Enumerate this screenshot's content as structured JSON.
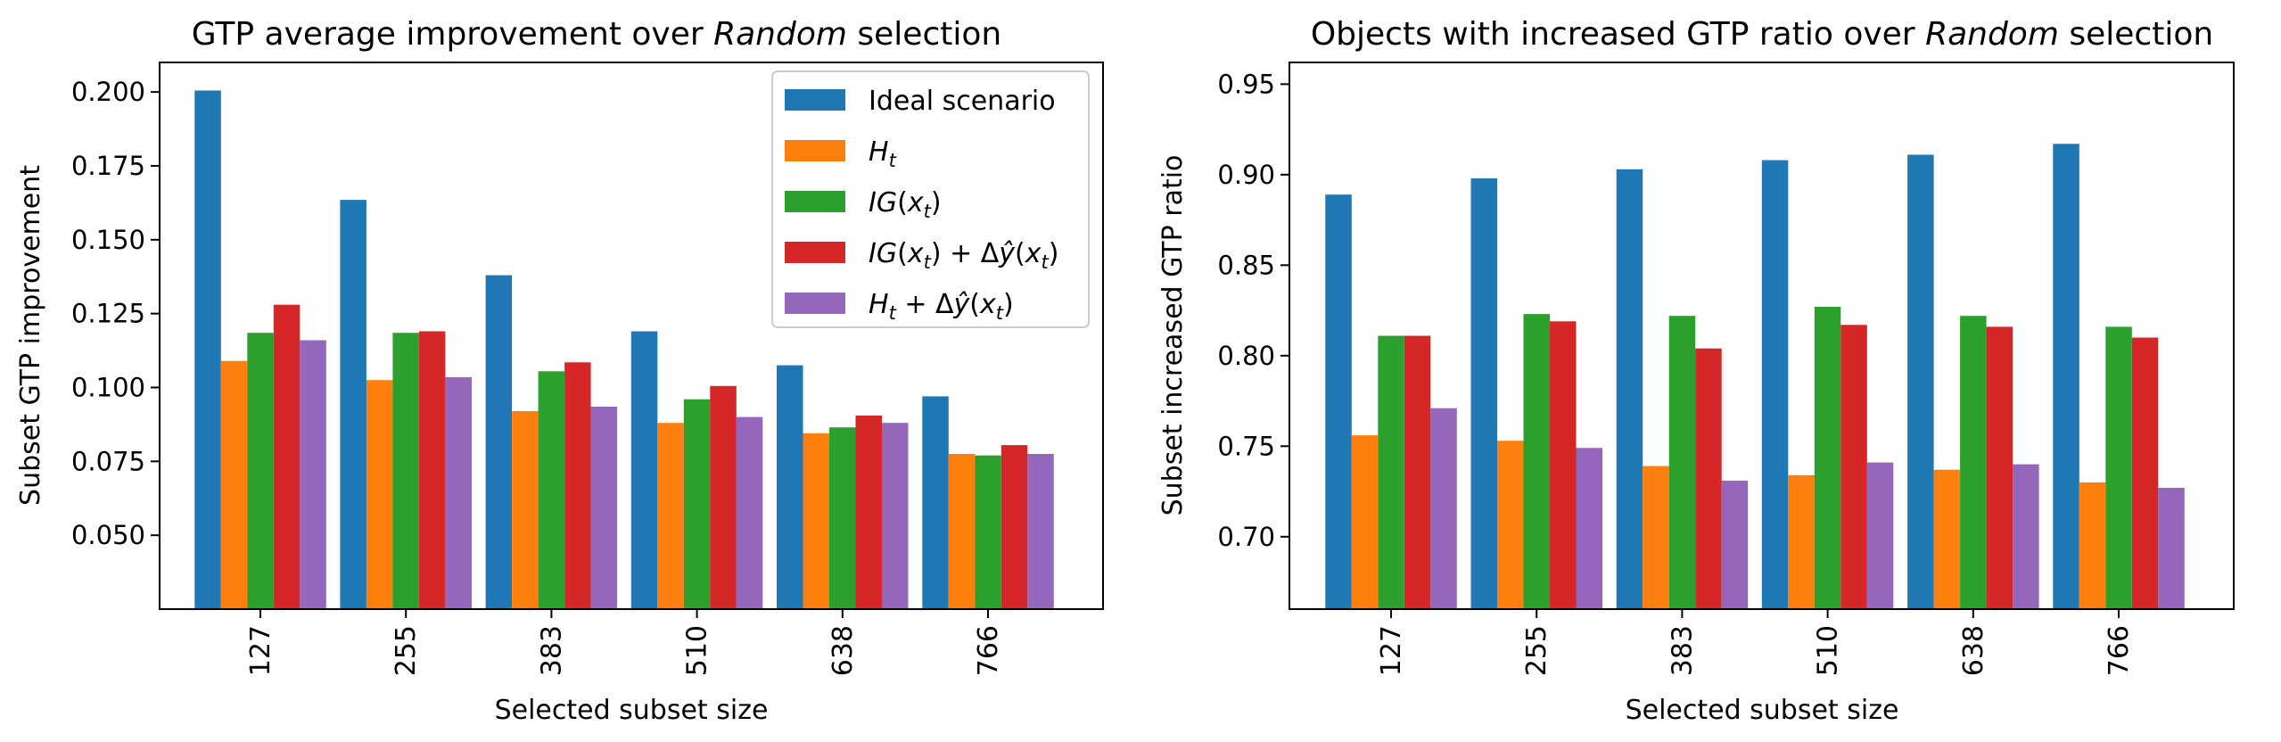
{
  "colors": {
    "ideal": "#1f77b4",
    "ht": "#ff7f0e",
    "ig": "#2ca02c",
    "ig_dy": "#d62728",
    "ht_dy": "#9467bd"
  },
  "chart_data": [
    {
      "type": "bar",
      "title": {
        "before": "GTP average improvement over ",
        "italic": "Random",
        "after": " selection"
      },
      "xlabel": "Selected subset size",
      "ylabel": "Subset GTP improvement",
      "categories": [
        "127",
        "255",
        "383",
        "510",
        "638",
        "766"
      ],
      "ylim": [
        0.025,
        0.21
      ],
      "yticks": [
        "0.050",
        "0.075",
        "0.100",
        "0.125",
        "0.150",
        "0.175",
        "0.200"
      ],
      "legend_position": "top-right",
      "series": [
        {
          "name": "Ideal scenario",
          "legend_parts": [
            [
              "n",
              "Ideal scenario"
            ]
          ],
          "color_key": "ideal",
          "values": [
            0.2005,
            0.1635,
            0.138,
            0.119,
            0.1075,
            0.097
          ]
        },
        {
          "name": "H_t",
          "legend_parts": [
            [
              "i",
              "H"
            ],
            [
              "s",
              "t"
            ]
          ],
          "color_key": "ht",
          "values": [
            0.109,
            0.1025,
            0.092,
            0.088,
            0.0845,
            0.0775
          ]
        },
        {
          "name": "IG(x_t)",
          "legend_parts": [
            [
              "i",
              "IG"
            ],
            [
              "n",
              "("
            ],
            [
              "i",
              "x"
            ],
            [
              "s",
              "t"
            ],
            [
              "n",
              ")"
            ]
          ],
          "color_key": "ig",
          "values": [
            0.1185,
            0.1185,
            0.1055,
            0.096,
            0.0865,
            0.077
          ]
        },
        {
          "name": "IG(x_t) + Δŷ(x_t)",
          "legend_parts": [
            [
              "i",
              "IG"
            ],
            [
              "n",
              "("
            ],
            [
              "i",
              "x"
            ],
            [
              "s",
              "t"
            ],
            [
              "n",
              ") + Δ"
            ],
            [
              "i",
              "ŷ"
            ],
            [
              "n",
              "("
            ],
            [
              "i",
              "x"
            ],
            [
              "s",
              "t"
            ],
            [
              "n",
              ")"
            ]
          ],
          "color_key": "ig_dy",
          "values": [
            0.128,
            0.119,
            0.1085,
            0.1005,
            0.0905,
            0.0805
          ]
        },
        {
          "name": "H_t + Δŷ(x_t)",
          "legend_parts": [
            [
              "i",
              "H"
            ],
            [
              "s",
              "t"
            ],
            [
              "n",
              " + Δ"
            ],
            [
              "i",
              "ŷ"
            ],
            [
              "n",
              "("
            ],
            [
              "i",
              "x"
            ],
            [
              "s",
              "t"
            ],
            [
              "n",
              ")"
            ]
          ],
          "color_key": "ht_dy",
          "values": [
            0.116,
            0.1035,
            0.0935,
            0.09,
            0.088,
            0.0775
          ]
        }
      ]
    },
    {
      "type": "bar",
      "title": {
        "before": "Objects with increased GTP ratio over ",
        "italic": "Random",
        "after": " selection"
      },
      "xlabel": "Selected subset size",
      "ylabel": "Subset increased GTP ratio",
      "categories": [
        "127",
        "255",
        "383",
        "510",
        "638",
        "766"
      ],
      "ylim": [
        0.66,
        0.962
      ],
      "yticks": [
        "0.70",
        "0.75",
        "0.80",
        "0.85",
        "0.90",
        "0.95"
      ],
      "series": [
        {
          "name": "Ideal scenario",
          "color_key": "ideal",
          "values": [
            0.889,
            0.898,
            0.903,
            0.908,
            0.911,
            0.917
          ]
        },
        {
          "name": "H_t",
          "color_key": "ht",
          "values": [
            0.756,
            0.753,
            0.739,
            0.734,
            0.737,
            0.73
          ]
        },
        {
          "name": "IG(x_t)",
          "color_key": "ig",
          "values": [
            0.811,
            0.823,
            0.822,
            0.827,
            0.822,
            0.816
          ]
        },
        {
          "name": "IG(x_t) + Δŷ(x_t)",
          "color_key": "ig_dy",
          "values": [
            0.811,
            0.819,
            0.804,
            0.817,
            0.816,
            0.81
          ]
        },
        {
          "name": "H_t + Δŷ(x_t)",
          "color_key": "ht_dy",
          "values": [
            0.771,
            0.749,
            0.731,
            0.741,
            0.74,
            0.727
          ]
        }
      ]
    }
  ]
}
